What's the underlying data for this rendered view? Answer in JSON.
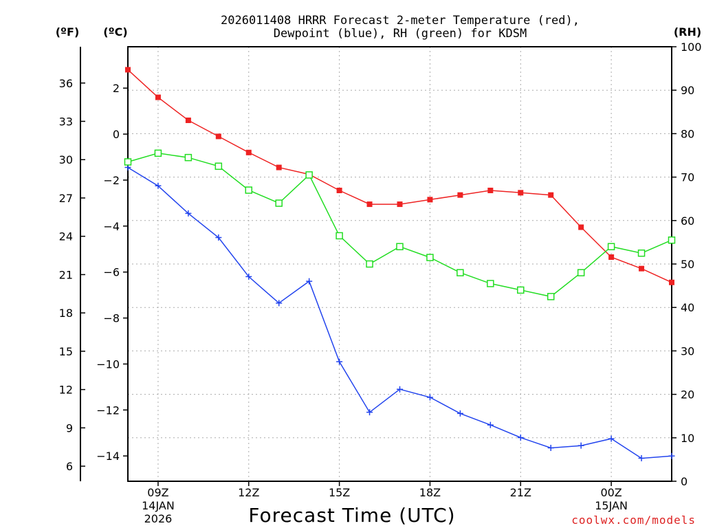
{
  "chart_data": {
    "type": "line",
    "title_line1": "2026011408 HRRR Forecast 2-meter Temperature (red),",
    "title_line2": "Dewpoint (blue), RH (green) for KDSM",
    "unit_f": "(ºF)",
    "unit_c": "(ºC)",
    "unit_rh": "(RH)",
    "xlabel": "Forecast Time (UTC)",
    "credit": "coolwx.com/models",
    "x_hours": [
      8,
      9,
      10,
      11,
      12,
      13,
      14,
      15,
      16,
      17,
      18,
      19,
      20,
      21,
      22,
      23,
      24,
      25,
      26
    ],
    "xlim": [
      8,
      26
    ],
    "x_ticks": [
      {
        "hour": 9,
        "lines": [
          "09Z",
          "14JAN",
          "2026"
        ]
      },
      {
        "hour": 12,
        "lines": [
          "12Z"
        ]
      },
      {
        "hour": 15,
        "lines": [
          "15Z"
        ]
      },
      {
        "hour": 18,
        "lines": [
          "18Z"
        ]
      },
      {
        "hour": 21,
        "lines": [
          "21Z"
        ]
      },
      {
        "hour": 24,
        "lines": [
          "00Z",
          "15JAN"
        ]
      }
    ],
    "celsius_axis": {
      "lim": [
        -15.1,
        3.8
      ],
      "ticks": [
        2,
        0,
        -2,
        -4,
        -6,
        -8,
        -10,
        -12,
        -14
      ],
      "tick_labels": [
        "2",
        "0",
        "−2",
        "−4",
        "−6",
        "−8",
        "−10",
        "−12",
        "−14"
      ]
    },
    "fahrenheit_ticks": [
      36,
      33,
      30,
      27,
      24,
      21,
      18,
      15,
      12,
      9,
      6
    ],
    "rh_axis": {
      "lim": [
        0,
        100
      ],
      "ticks": [
        100,
        90,
        80,
        70,
        60,
        50,
        40,
        30,
        20,
        10,
        0
      ]
    },
    "series": [
      {
        "name": "Temperature",
        "color": "#ee2222",
        "marker": "filled-square",
        "axis": "celsius",
        "values": [
          2.8,
          1.6,
          0.6,
          -0.1,
          -0.8,
          -1.45,
          -1.75,
          -2.45,
          -3.05,
          -3.05,
          -2.85,
          -2.65,
          -2.45,
          -2.55,
          -2.65,
          -4.05,
          -5.35,
          -5.85,
          -6.45
        ]
      },
      {
        "name": "Dewpoint",
        "color": "#2244ee",
        "marker": "plus",
        "axis": "celsius",
        "values": [
          -1.45,
          -2.25,
          -3.45,
          -4.5,
          -6.2,
          -7.35,
          -6.4,
          -9.9,
          -12.1,
          -11.1,
          -11.45,
          -12.15,
          -12.65,
          -13.2,
          -13.65,
          -13.55,
          -13.25,
          -14.1,
          -14.0
        ]
      },
      {
        "name": "RH",
        "color": "#22dd22",
        "marker": "open-square",
        "axis": "rh",
        "values": [
          73.5,
          75.5,
          74.5,
          72.5,
          67,
          64,
          70.5,
          56.5,
          50,
          54,
          51.5,
          48,
          45.5,
          44,
          42.5,
          48,
          54,
          52.5,
          55.5
        ]
      }
    ]
  }
}
